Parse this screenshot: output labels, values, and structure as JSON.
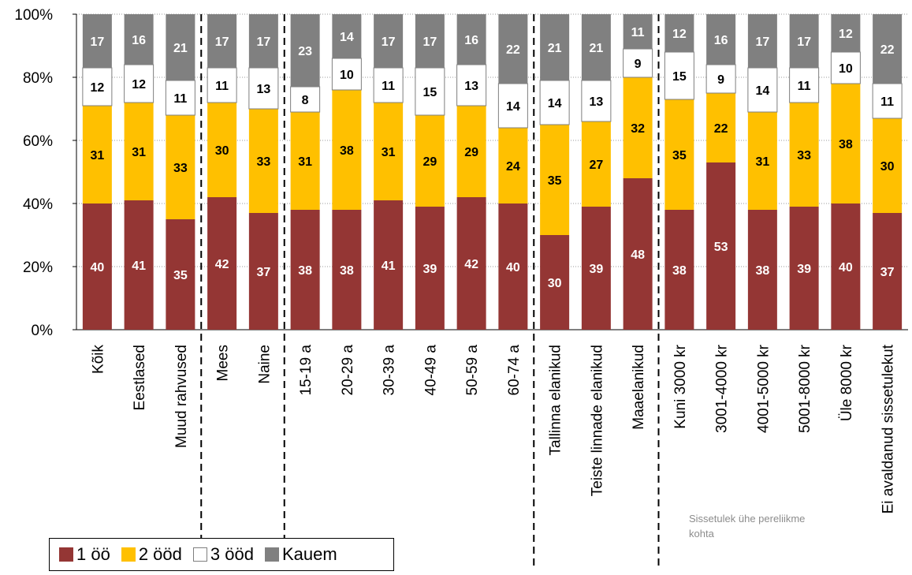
{
  "chart_data": {
    "type": "bar",
    "stacked": true,
    "categories": [
      "Kõik",
      "Eestlased",
      "Muud rahvused",
      "Mees",
      "Naine",
      "15-19 a",
      "20-29 a",
      "30-39 a",
      "40-49 a",
      "50-59 a",
      "60-74 a",
      "Tallinna elanikud",
      "Teiste linnade elanikud",
      "Maaelanikud",
      "Kuni 3000 kr",
      "3001-4000 kr",
      "4001-5000 kr",
      "5001-8000 kr",
      "Üle 8000 kr",
      "Ei avaldanud sissetulekut"
    ],
    "series": [
      {
        "name": "1 öö",
        "color": "#943634",
        "label_color": "#ffffff",
        "values": [
          40,
          41,
          35,
          42,
          37,
          38,
          38,
          41,
          39,
          42,
          40,
          30,
          39,
          48,
          38,
          53,
          38,
          39,
          40,
          37
        ]
      },
      {
        "name": "2 ööd",
        "color": "#ffc000",
        "label_color": "#000000",
        "values": [
          31,
          31,
          33,
          30,
          33,
          31,
          38,
          31,
          29,
          29,
          24,
          35,
          27,
          32,
          35,
          22,
          31,
          33,
          38,
          30
        ]
      },
      {
        "name": "3 ööd",
        "color": "#ffffff",
        "label_color": "#000000",
        "values": [
          12,
          12,
          11,
          11,
          13,
          8,
          10,
          11,
          15,
          13,
          14,
          14,
          13,
          9,
          15,
          9,
          14,
          11,
          10,
          11
        ]
      },
      {
        "name": "Kauem",
        "color": "#808080",
        "label_color": "#ffffff",
        "values": [
          17,
          16,
          21,
          17,
          17,
          23,
          14,
          17,
          17,
          16,
          22,
          21,
          21,
          11,
          12,
          16,
          17,
          17,
          12,
          22
        ]
      }
    ],
    "ylim": [
      0,
      100
    ],
    "yticks": [
      "0%",
      "20%",
      "40%",
      "60%",
      "80%",
      "100%"
    ],
    "gridlines": true,
    "group_separators_after": [
      2,
      4,
      10,
      13
    ],
    "legend_position": "bottom-left",
    "annotation": "Sissetulek ühe pereliikme kohta"
  }
}
